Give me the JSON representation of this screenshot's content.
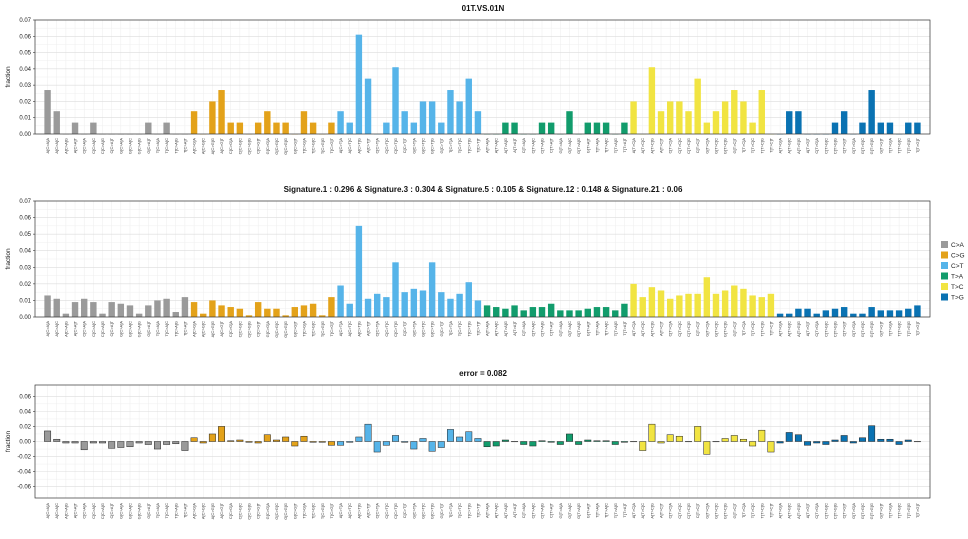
{
  "colors": {
    "C>A": "#9a9a9a",
    "C>G": "#e3a21a",
    "C>T": "#56b4e9",
    "T>A": "#129c6c",
    "T>C": "#f1e442",
    "T>G": "#0a72b2"
  },
  "legend": {
    "position": "right",
    "items": [
      "C>A",
      "C>G",
      "C>T",
      "T>A",
      "T>C",
      "T>G"
    ]
  },
  "chart_data": [
    {
      "type": "bar",
      "title": "01T.VS.01N",
      "ylabel": "fraction",
      "ylim": [
        0,
        0.07
      ],
      "yticks": [
        0.0,
        0.01,
        0.02,
        0.03,
        0.04,
        0.05,
        0.06,
        0.07
      ],
      "ytick_labels": [
        "0.00",
        "0.01",
        "0.02",
        "0.03",
        "0.04",
        "0.05",
        "0.06",
        "0.07"
      ],
      "grid": true,
      "categories": [
        "A[C>A]A",
        "A[C>A]C",
        "A[C>A]G",
        "A[C>A]T",
        "C[C>A]A",
        "C[C>A]C",
        "C[C>A]G",
        "C[C>A]T",
        "G[C>A]A",
        "G[C>A]C",
        "G[C>A]G",
        "G[C>A]T",
        "T[C>A]A",
        "T[C>A]C",
        "T[C>A]G",
        "T[C>A]T",
        "A[C>G]A",
        "A[C>G]C",
        "A[C>G]G",
        "A[C>G]T",
        "C[C>G]A",
        "C[C>G]C",
        "C[C>G]G",
        "C[C>G]T",
        "G[C>G]A",
        "G[C>G]C",
        "G[C>G]G",
        "G[C>G]T",
        "T[C>G]A",
        "T[C>G]C",
        "T[C>G]G",
        "T[C>G]T",
        "A[C>T]A",
        "A[C>T]C",
        "A[C>T]G",
        "A[C>T]T",
        "C[C>T]A",
        "C[C>T]C",
        "C[C>T]G",
        "C[C>T]T",
        "G[C>T]A",
        "G[C>T]C",
        "G[C>T]G",
        "G[C>T]T",
        "T[C>T]A",
        "T[C>T]C",
        "T[C>T]G",
        "T[C>T]T",
        "A[T>A]A",
        "A[T>A]C",
        "A[T>A]G",
        "A[T>A]T",
        "C[T>A]A",
        "C[T>A]C",
        "C[T>A]G",
        "C[T>A]T",
        "G[T>A]A",
        "G[T>A]C",
        "G[T>A]G",
        "G[T>A]T",
        "T[T>A]A",
        "T[T>A]C",
        "T[T>A]G",
        "T[T>A]T",
        "A[T>C]A",
        "A[T>C]C",
        "A[T>C]G",
        "A[T>C]T",
        "C[T>C]A",
        "C[T>C]C",
        "C[T>C]G",
        "C[T>C]T",
        "G[T>C]A",
        "G[T>C]C",
        "G[T>C]G",
        "G[T>C]T",
        "T[T>C]A",
        "T[T>C]C",
        "T[T>C]G",
        "T[T>C]T",
        "A[T>G]A",
        "A[T>G]C",
        "A[T>G]G",
        "A[T>G]T",
        "C[T>G]A",
        "C[T>G]C",
        "C[T>G]G",
        "C[T>G]T",
        "G[T>G]A",
        "G[T>G]C",
        "G[T>G]G",
        "G[T>G]T",
        "T[T>G]A",
        "T[T>G]C",
        "T[T>G]G",
        "T[T>G]T"
      ],
      "values": [
        0.027,
        0.014,
        0,
        0.007,
        0,
        0.007,
        0,
        0,
        0,
        0,
        0,
        0.007,
        0,
        0.007,
        0,
        0,
        0.014,
        0,
        0.02,
        0.027,
        0.007,
        0.007,
        0,
        0.007,
        0.014,
        0.007,
        0.007,
        0,
        0.014,
        0.007,
        0,
        0.007,
        0.014,
        0.007,
        0.061,
        0.034,
        0,
        0.007,
        0.041,
        0.014,
        0.007,
        0.02,
        0.02,
        0.007,
        0.027,
        0.02,
        0.034,
        0.014,
        0,
        0,
        0.007,
        0.007,
        0,
        0,
        0.007,
        0.007,
        0,
        0.014,
        0,
        0.007,
        0.007,
        0.007,
        0,
        0.007,
        0.02,
        0,
        0.041,
        0.014,
        0.02,
        0.02,
        0.014,
        0.034,
        0.007,
        0.014,
        0.02,
        0.027,
        0.02,
        0.007,
        0.027,
        0,
        0,
        0.014,
        0.014,
        0,
        0,
        0,
        0.007,
        0.014,
        0,
        0.007,
        0.027,
        0.007,
        0.007,
        0,
        0.007,
        0.007
      ]
    },
    {
      "type": "bar",
      "title": "Signature.1 : 0.296 & Signature.3 : 0.304 & Signature.5 : 0.105 & Signature.12 : 0.148 & Signature.21 : 0.06",
      "ylabel": "fraction",
      "ylim": [
        0,
        0.07
      ],
      "yticks": [
        0.0,
        0.01,
        0.02,
        0.03,
        0.04,
        0.05,
        0.06,
        0.07
      ],
      "ytick_labels": [
        "0.00",
        "0.01",
        "0.02",
        "0.03",
        "0.04",
        "0.05",
        "0.06",
        "0.07"
      ],
      "grid": true,
      "values": [
        0.013,
        0.011,
        0.002,
        0.009,
        0.011,
        0.009,
        0.002,
        0.009,
        0.008,
        0.007,
        0.002,
        0.007,
        0.01,
        0.011,
        0.003,
        0.012,
        0.009,
        0.002,
        0.01,
        0.007,
        0.006,
        0.005,
        0.001,
        0.009,
        0.005,
        0.005,
        0.001,
        0.006,
        0.007,
        0.008,
        0.001,
        0.012,
        0.019,
        0.008,
        0.055,
        0.011,
        0.014,
        0.012,
        0.033,
        0.015,
        0.017,
        0.016,
        0.033,
        0.015,
        0.011,
        0.014,
        0.021,
        0.01,
        0.007,
        0.006,
        0.005,
        0.007,
        0.004,
        0.006,
        0.006,
        0.008,
        0.004,
        0.004,
        0.004,
        0.005,
        0.006,
        0.006,
        0.004,
        0.008,
        0.02,
        0.012,
        0.018,
        0.016,
        0.011,
        0.013,
        0.014,
        0.014,
        0.024,
        0.014,
        0.016,
        0.019,
        0.017,
        0.013,
        0.012,
        0.014,
        0.002,
        0.002,
        0.005,
        0.005,
        0.002,
        0.004,
        0.005,
        0.006,
        0.002,
        0.002,
        0.006,
        0.004,
        0.004,
        0.004,
        0.005,
        0.007
      ]
    },
    {
      "type": "bar",
      "title": "error = 0.082",
      "ylabel": "fraction",
      "ylim": [
        -0.075,
        0.075
      ],
      "yticks": [
        -0.06,
        -0.04,
        -0.02,
        0.0,
        0.02,
        0.04,
        0.06
      ],
      "ytick_labels": [
        "-0.06",
        "-0.04",
        "-0.02",
        "0.00",
        "0.02",
        "0.04",
        "0.06"
      ],
      "grid": true,
      "values": [
        0.014,
        0.003,
        -0.002,
        -0.002,
        -0.011,
        -0.002,
        -0.002,
        -0.009,
        -0.008,
        -0.007,
        -0.002,
        -0.004,
        -0.01,
        -0.004,
        -0.003,
        -0.012,
        0.005,
        -0.002,
        0.01,
        0.02,
        0.001,
        0.002,
        -0.001,
        -0.002,
        0.009,
        0.002,
        0.006,
        -0.006,
        0.007,
        -0.001,
        -0.001,
        -0.005,
        -0.005,
        -0.001,
        0.006,
        0.023,
        -0.014,
        -0.005,
        0.008,
        -0.001,
        -0.01,
        0.004,
        -0.013,
        -0.008,
        0.016,
        0.006,
        0.013,
        0.004,
        -0.007,
        -0.006,
        0.002,
        0.0,
        -0.004,
        -0.006,
        0.001,
        -0.001,
        -0.004,
        0.01,
        -0.004,
        0.002,
        0.001,
        0.001,
        -0.004,
        -0.001,
        0.0,
        -0.012,
        0.023,
        -0.002,
        0.009,
        0.007,
        0.0,
        0.02,
        -0.017,
        0.0,
        0.004,
        0.008,
        0.003,
        -0.006,
        0.015,
        -0.014,
        -0.002,
        0.012,
        0.009,
        -0.005,
        -0.002,
        -0.004,
        0.002,
        0.008,
        -0.002,
        0.005,
        0.021,
        0.003,
        0.003,
        -0.004,
        0.002,
        0.0
      ]
    }
  ]
}
